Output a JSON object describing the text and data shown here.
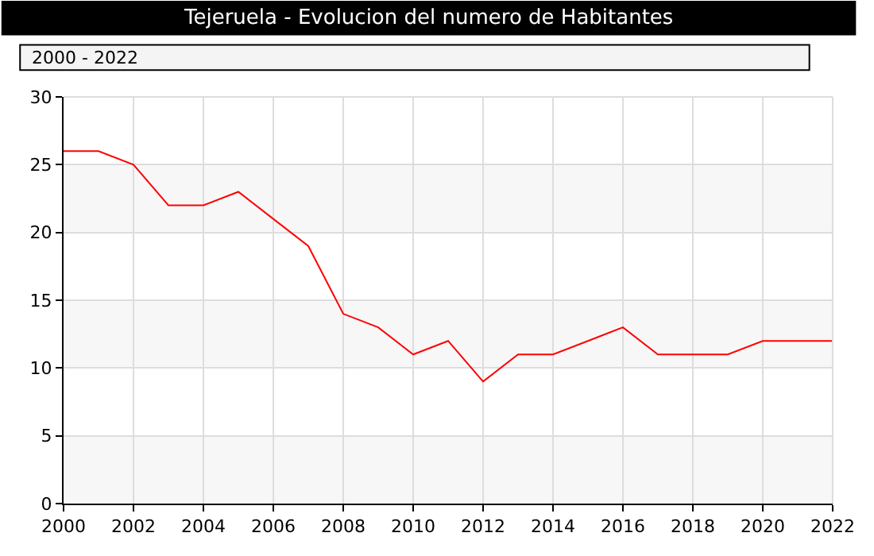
{
  "chart_data": {
    "type": "line",
    "title": "Tejeruela - Evolucion del numero de Habitantes",
    "subtitle": "2000 - 2022",
    "x": [
      2000,
      2001,
      2002,
      2003,
      2004,
      2005,
      2006,
      2007,
      2008,
      2009,
      2010,
      2011,
      2012,
      2013,
      2014,
      2015,
      2016,
      2017,
      2018,
      2019,
      2020,
      2021,
      2022
    ],
    "series": [
      {
        "color": "#ff0000",
        "values": [
          26,
          26,
          25,
          22,
          22,
          23,
          21,
          19,
          14,
          13,
          11,
          12,
          9,
          11,
          11,
          12,
          13,
          11,
          11,
          11,
          12,
          12,
          12
        ]
      }
    ],
    "xlim": [
      2000,
      2022
    ],
    "xticks": [
      2000,
      2002,
      2004,
      2006,
      2008,
      2010,
      2012,
      2014,
      2016,
      2018,
      2020,
      2022
    ],
    "ylim": [
      0,
      30
    ],
    "yticks": [
      0,
      5,
      10,
      15,
      20,
      25,
      30
    ],
    "bands": [
      {
        "axis": "y",
        "from": 0,
        "to": 5,
        "color": "#f7f7f7"
      },
      {
        "axis": "y",
        "from": 10,
        "to": 15,
        "color": "#f7f7f7"
      },
      {
        "axis": "y",
        "from": 20,
        "to": 25,
        "color": "#f7f7f7"
      }
    ],
    "grid": true,
    "marker": "none",
    "line_style": "solid"
  }
}
